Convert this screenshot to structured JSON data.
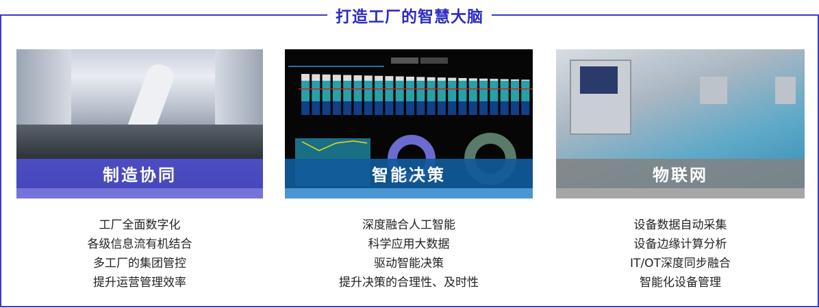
{
  "header": {
    "title": "打造工厂的智慧大脑"
  },
  "colors": {
    "accent": "#2b2bc6",
    "card1_band": "#4a4ad0",
    "card2_band": "#0f5a9a",
    "card3_band": "#8a8a8a"
  },
  "cards": [
    {
      "label": "制造协同",
      "image": "robot-arm-factory-photo",
      "lines": [
        "工厂全面数字化",
        "各级信息流有机结合",
        "多工厂的集团管控",
        "提升运营管理效率"
      ]
    },
    {
      "label": "智能决策",
      "image": "dashboard-charts-screenshot",
      "lines": [
        "深度融合人工智能",
        "科学应用大数据",
        "驱动智能决策",
        "提升决策的合理性、及时性"
      ]
    },
    {
      "label": "物联网",
      "image": "industrial-machines-photo",
      "lines": [
        "设备数据自动采集",
        "设备边缘计算分析",
        "IT/OT深度同步融合",
        "智能化设备管理"
      ]
    }
  ]
}
